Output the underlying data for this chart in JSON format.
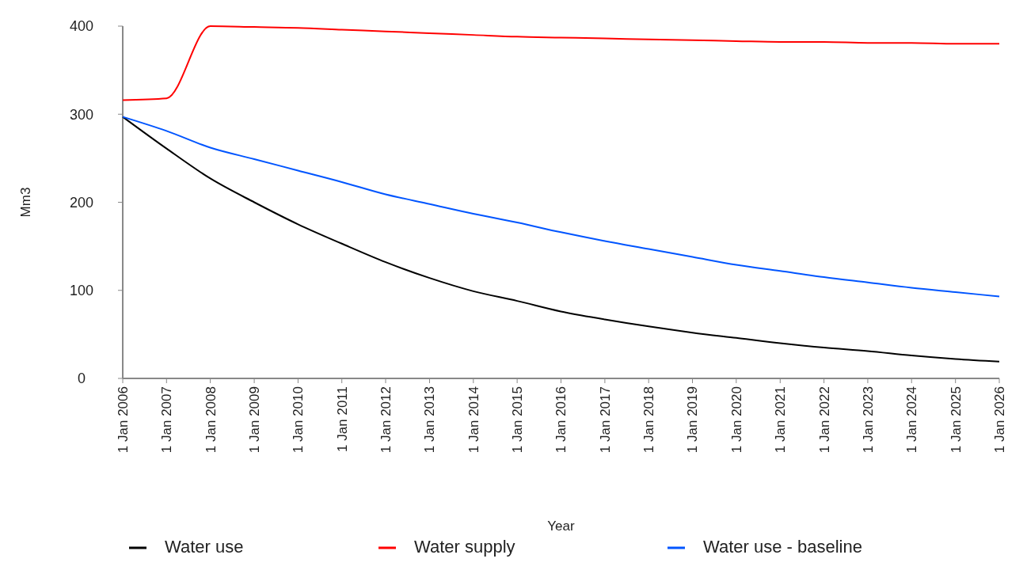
{
  "chart_data": {
    "type": "line",
    "xlabel": "Year",
    "ylabel": "Mm3",
    "x": [
      "2006-01-01",
      "2007-01-01",
      "2008-01-01",
      "2009-01-01",
      "2010-01-01",
      "2011-01-01",
      "2012-01-01",
      "2013-01-01",
      "2014-01-01",
      "2015-01-01",
      "2016-01-01",
      "2017-01-01",
      "2018-01-01",
      "2019-01-01",
      "2020-01-01",
      "2021-01-01",
      "2022-01-01",
      "2023-01-01",
      "2024-01-01",
      "2025-01-01",
      "2026-01-01"
    ],
    "series": [
      {
        "name": "Water use",
        "color": "#000000",
        "values": [
          297,
          261,
          227,
          200,
          175,
          153,
          132,
          114,
          99,
          88,
          76,
          67,
          59,
          52,
          46,
          40,
          35,
          31,
          26,
          22,
          19
        ]
      },
      {
        "name": "Water supply",
        "color": "#ff0000",
        "values": [
          316,
          318,
          400,
          399,
          398,
          396,
          394,
          392,
          390,
          388,
          387,
          386,
          385,
          384,
          383,
          382,
          382,
          381,
          381,
          380,
          380
        ]
      },
      {
        "name": "Water use - baseline",
        "color": "#0055ff",
        "values": [
          297,
          281,
          262,
          249,
          236,
          223,
          209,
          198,
          187,
          177,
          166,
          156,
          147,
          138,
          129,
          122,
          115,
          109,
          103,
          98,
          93
        ]
      }
    ],
    "xlim": [
      "2006-01-01",
      "2026-01-01"
    ],
    "xticks": [
      {
        "value": "2006-01-01",
        "label": "1 Jan 2006"
      },
      {
        "value": "2007-01-01",
        "label": "1 Jan 2007"
      },
      {
        "value": "2008-01-01",
        "label": "1 Jan 2008"
      },
      {
        "value": "2009-01-01",
        "label": "1 Jan 2009"
      },
      {
        "value": "2010-01-01",
        "label": "1 Jan 2010"
      },
      {
        "value": "2011-01-01",
        "label": "1 Jan 2011"
      },
      {
        "value": "2012-01-01",
        "label": "1 Jan 2012"
      },
      {
        "value": "2013-01-01",
        "label": "1 Jan 2013"
      },
      {
        "value": "2014-01-01",
        "label": "1 Jan 2014"
      },
      {
        "value": "2015-01-01",
        "label": "1 Jan 2015"
      },
      {
        "value": "2016-01-01",
        "label": "1 Jan 2016"
      },
      {
        "value": "2017-01-01",
        "label": "1 Jan 2017"
      },
      {
        "value": "2018-01-01",
        "label": "1 Jan 2018"
      },
      {
        "value": "2019-01-01",
        "label": "1 Jan 2019"
      },
      {
        "value": "2020-01-01",
        "label": "1 Jan 2020"
      },
      {
        "value": "2021-01-01",
        "label": "1 Jan 2021"
      },
      {
        "value": "2022-01-01",
        "label": "1 Jan 2022"
      },
      {
        "value": "2023-01-01",
        "label": "1 Jan 2023"
      },
      {
        "value": "2024-01-01",
        "label": "1 Jan 2024"
      },
      {
        "value": "2025-01-01",
        "label": "1 Jan 2025"
      },
      {
        "value": "2026-01-01",
        "label": "1 Jan 2026"
      }
    ],
    "ylim": [
      0,
      400
    ],
    "yticks": [
      0,
      100,
      200,
      300,
      400
    ],
    "grid": false,
    "legend": "bottom",
    "marker": "none",
    "line_style": "solid"
  }
}
